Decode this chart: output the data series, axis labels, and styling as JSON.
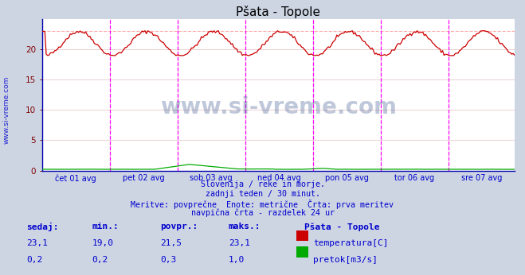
{
  "title": "Pšata - Topole",
  "bg_color": "#cdd5e3",
  "plot_bg_color": "#ffffff",
  "grid_color_y": "#e8c8c8",
  "grid_color_x": "#e8c8c8",
  "temp_color": "#cc0000",
  "flow_color": "#00aa00",
  "temp_dashed_color": "#ffaaaa",
  "vline_color": "#ff00ff",
  "axis_color": "#0000cc",
  "text_color": "#0000cc",
  "watermark_color": "#1a3a7a",
  "tick_color": "#800000",
  "spine_color": "#0000aa",
  "x_labels": [
    "čet 01 avg",
    "pet 02 avg",
    "sob 03 avg",
    "ned 04 avg",
    "pon 05 avg",
    "tor 06 avg",
    "sre 07 avg"
  ],
  "y_ticks": [
    0,
    5,
    10,
    15,
    20
  ],
  "y_max": 25,
  "y_min": 0,
  "subtitle_lines": [
    "Slovenija / reke in morje.",
    "zadnji teden / 30 minut.",
    "Meritve: povprečne  Enote: metrične  Črta: prva meritev",
    "navpična črta - razdelek 24 ur"
  ],
  "legend_title": "Pšata - Topole",
  "stats_headers": [
    "sedaj:",
    "min.:",
    "povpr.:",
    "maks.:"
  ],
  "stats_temp": [
    "23,1",
    "19,0",
    "21,5",
    "23,1"
  ],
  "stats_flow": [
    "0,2",
    "0,2",
    "0,3",
    "1,0"
  ],
  "legend_temp": "temperatura[C]",
  "legend_flow": "pretok[m3/s]",
  "temp_max": 23.1,
  "temp_min": 19.0,
  "flow_max": 1.0,
  "flow_min": 0.2,
  "n_points": 336,
  "watermark_label": "www.si-vreme.com",
  "ylabel_watermark": "www.si-vreme.com"
}
